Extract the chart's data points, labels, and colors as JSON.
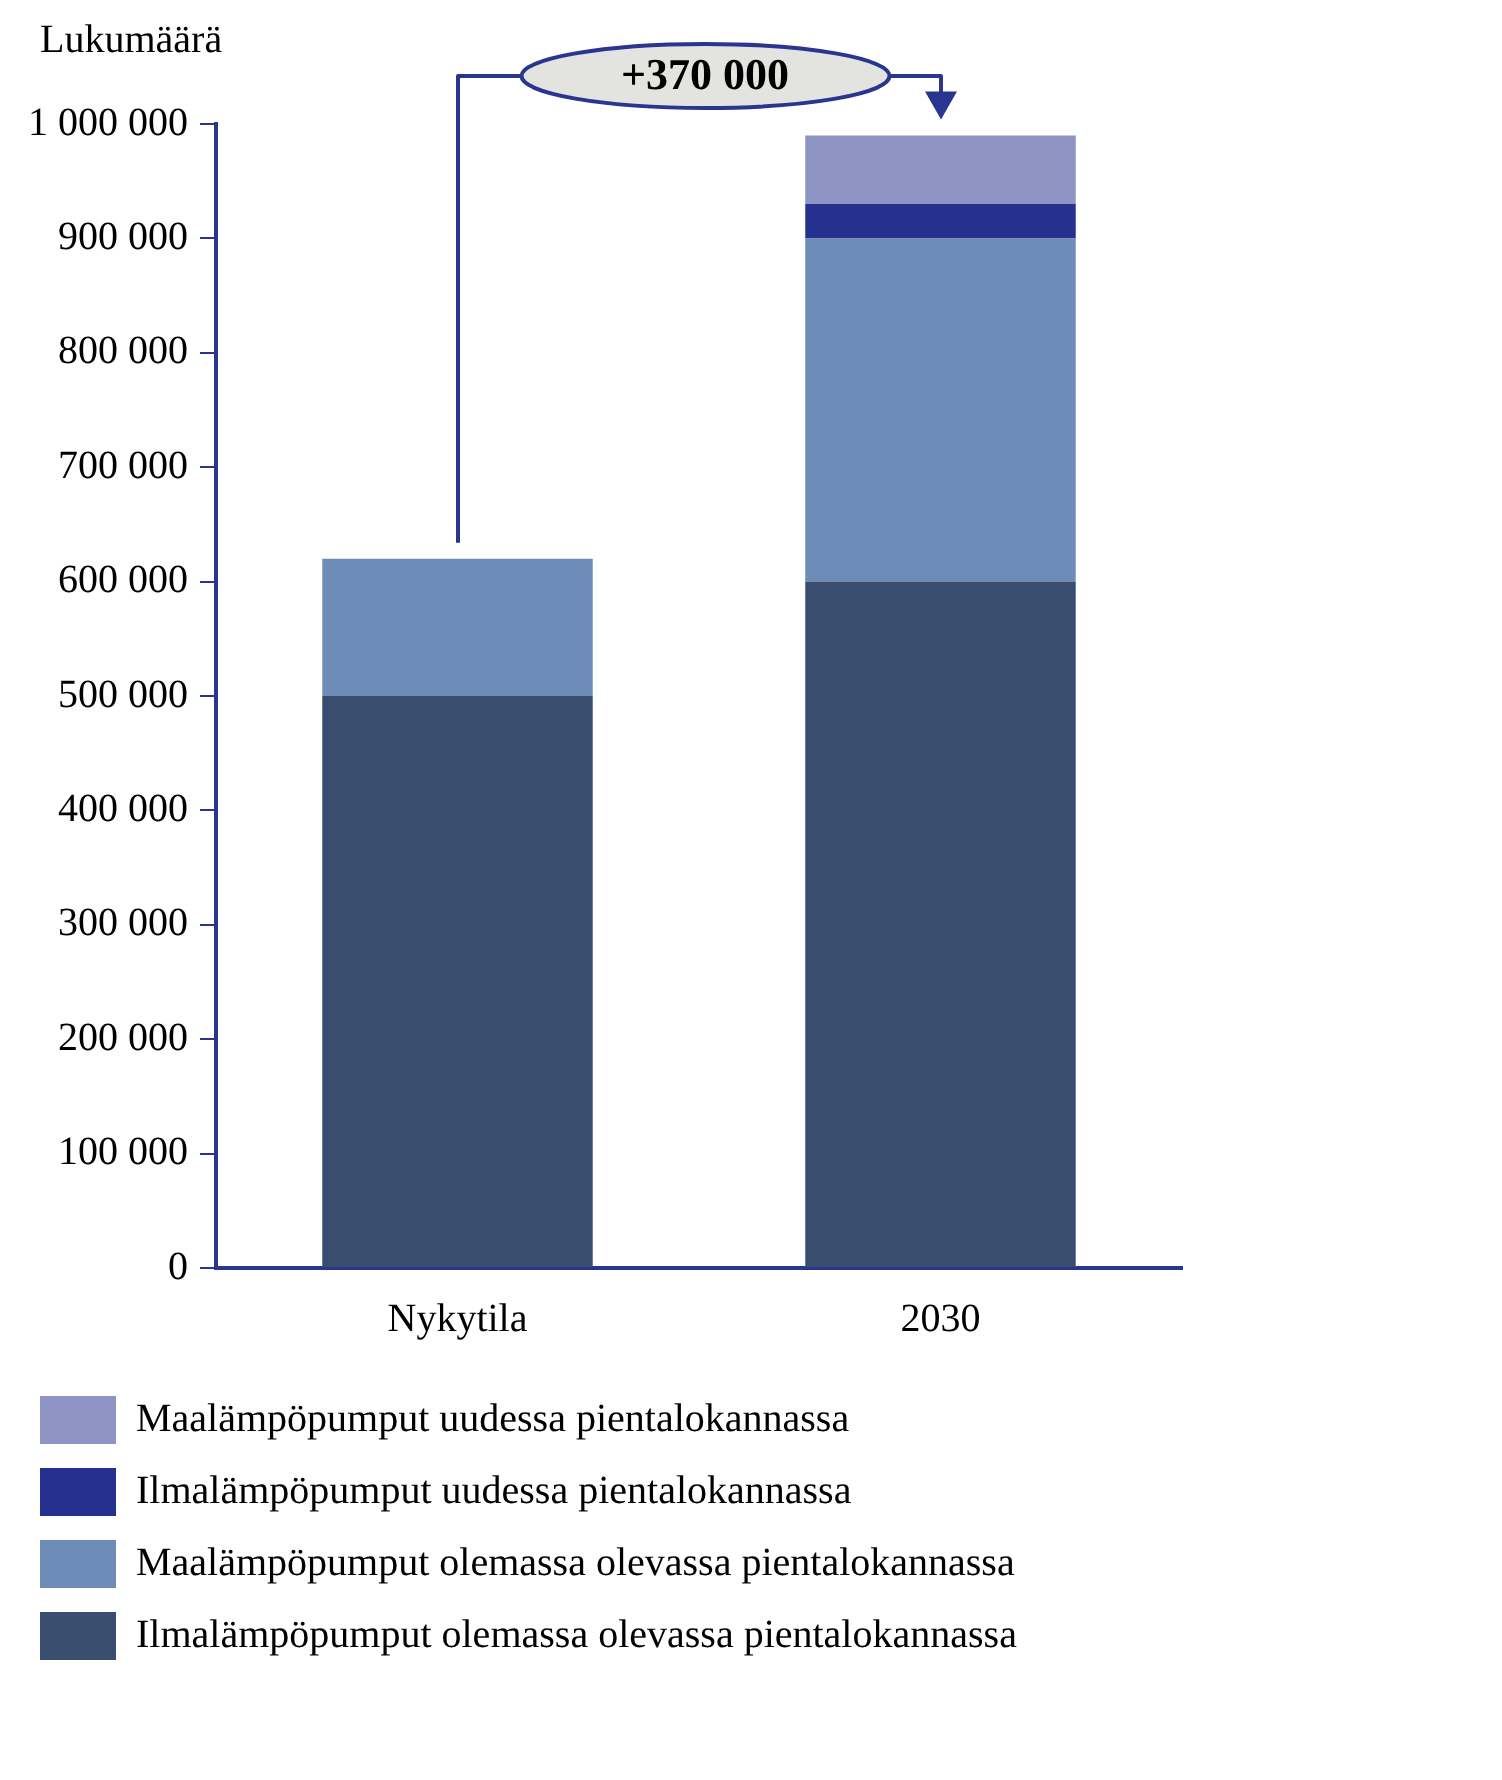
{
  "chart_data": {
    "type": "bar",
    "stacked": true,
    "ylabel": "Lukumäärä",
    "categories": [
      "Nykytila",
      "2030"
    ],
    "series": [
      {
        "name": "Ilmalämpöpumput olemassa olevassa pientalokannassa",
        "color": "#394e6e",
        "values": [
          500000,
          600000
        ]
      },
      {
        "name": "Maalämpöpumput olemassa olevassa pientalokannassa",
        "color": "#6d8db8",
        "values": [
          120000,
          300000
        ]
      },
      {
        "name": "Ilmalämpöpumput uudessa pientalokannassa",
        "color": "#26318f",
        "values": [
          null,
          30000
        ]
      },
      {
        "name": "Maalämpöpumput uudessa pientalokannassa",
        "color": "#8e94c4",
        "values": [
          null,
          60000
        ]
      }
    ],
    "ylim": [
      0,
      1000000
    ],
    "yticks": [
      0,
      {
        "value": 100000,
        "label": "100 000"
      },
      {
        "value": 200000,
        "label": "200 000"
      },
      {
        "value": 300000,
        "label": "300 000"
      },
      {
        "value": 400000,
        "label": "400 000"
      },
      {
        "value": 500000,
        "label": "500 000"
      },
      {
        "value": 600000,
        "label": "600 000"
      },
      {
        "value": 700000,
        "label": "700 000"
      },
      {
        "value": 800000,
        "label": "800 000"
      },
      {
        "value": 900000,
        "label": "900 000"
      },
      {
        "value": 1000000,
        "label": "1 000 000"
      }
    ],
    "annotations": [
      "+370 000"
    ],
    "grid": false,
    "legend": "bottom"
  }
}
